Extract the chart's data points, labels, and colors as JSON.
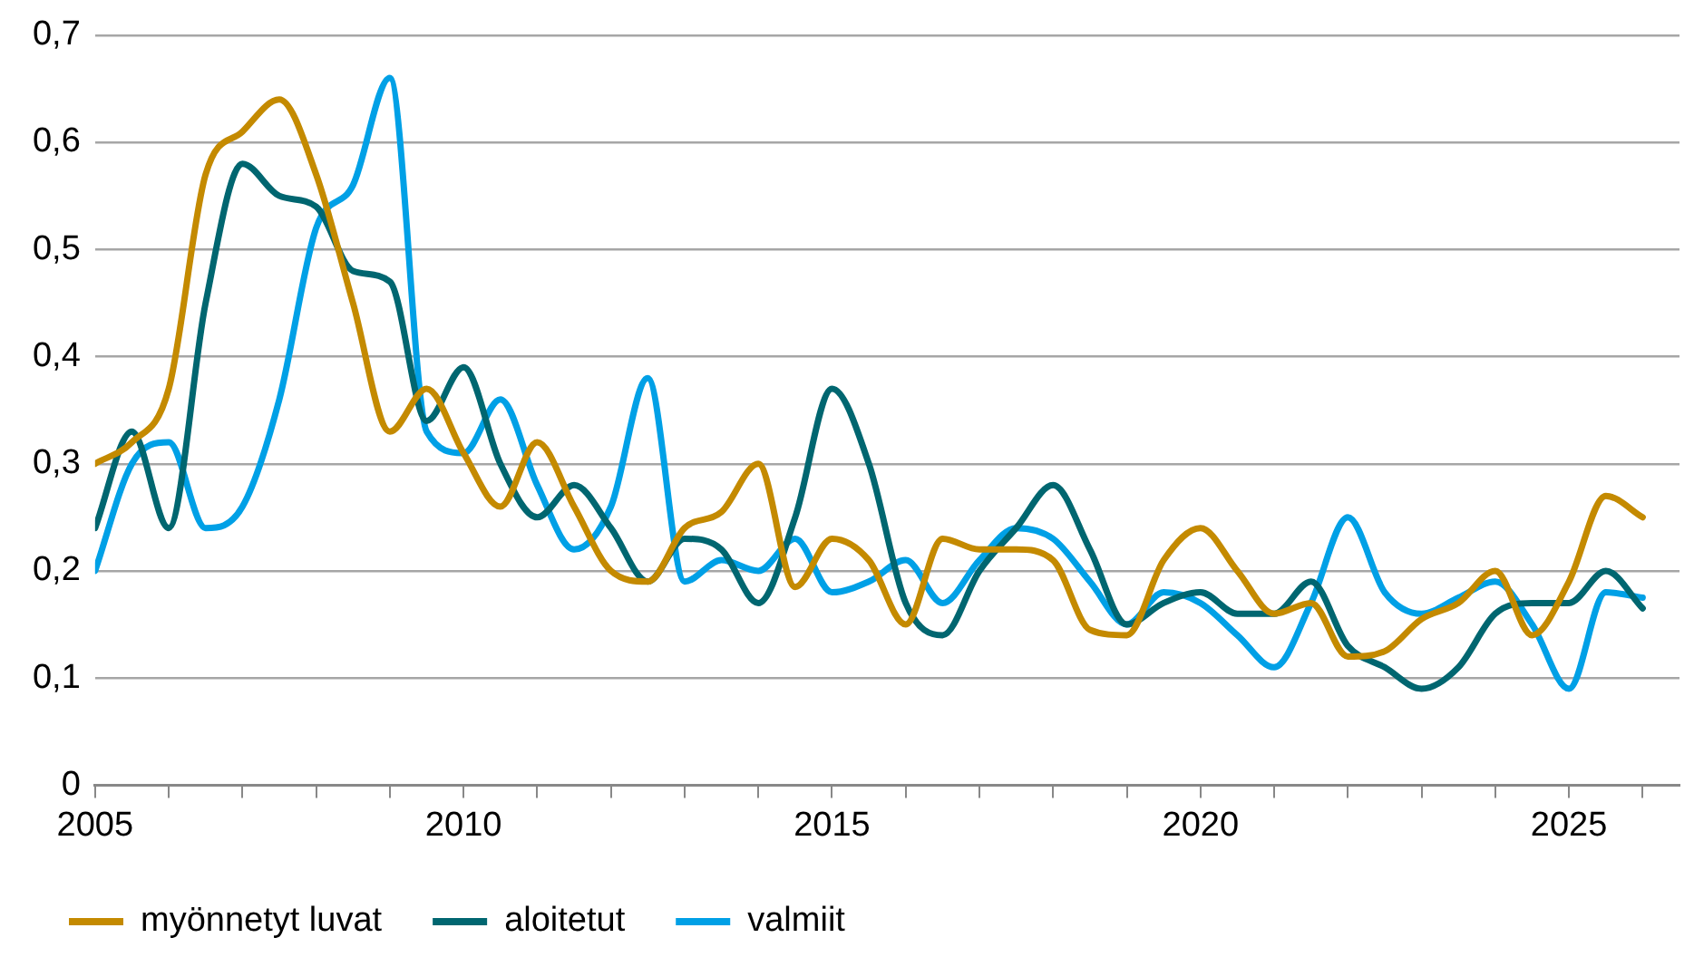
{
  "chart_data": {
    "type": "line",
    "x": [
      2005,
      2005.5,
      2006,
      2006.5,
      2007,
      2007.5,
      2008,
      2008.5,
      2009,
      2009.5,
      2010,
      2010.5,
      2011,
      2011.5,
      2012,
      2012.5,
      2013,
      2013.5,
      2014,
      2014.5,
      2015,
      2015.5,
      2016,
      2016.5,
      2017,
      2017.5,
      2018,
      2018.5,
      2019,
      2019.5,
      2020,
      2020.5,
      2021,
      2021.5,
      2022,
      2022.5,
      2023,
      2023.5,
      2024,
      2024.5,
      2025,
      2025.5,
      2026
    ],
    "series": [
      {
        "name": "myönnetyt luvat",
        "color": "#c48a00",
        "values": [
          0.3,
          0.32,
          0.37,
          0.57,
          0.61,
          0.64,
          0.57,
          0.45,
          0.33,
          0.37,
          0.31,
          0.26,
          0.32,
          0.26,
          0.2,
          0.19,
          0.24,
          0.255,
          0.3,
          0.185,
          0.23,
          0.21,
          0.15,
          0.23,
          0.22,
          0.22,
          0.21,
          0.145,
          0.14,
          0.21,
          0.24,
          0.2,
          0.16,
          0.17,
          0.12,
          0.125,
          0.155,
          0.17,
          0.2,
          0.14,
          0.19,
          0.27,
          0.25
        ]
      },
      {
        "name": "aloitetut",
        "color": "#006670",
        "values": [
          0.24,
          0.33,
          0.24,
          0.45,
          0.58,
          0.55,
          0.54,
          0.48,
          0.47,
          0.34,
          0.39,
          0.3,
          0.25,
          0.28,
          0.24,
          0.19,
          0.23,
          0.22,
          0.17,
          0.25,
          0.37,
          0.3,
          0.17,
          0.14,
          0.2,
          0.24,
          0.28,
          0.22,
          0.15,
          0.17,
          0.18,
          0.16,
          0.16,
          0.19,
          0.13,
          0.11,
          0.09,
          0.11,
          0.16,
          0.17,
          0.17,
          0.2,
          0.165
        ]
      },
      {
        "name": "valmiit",
        "color": "#00a0e6",
        "values": [
          0.2,
          0.3,
          0.32,
          0.24,
          0.26,
          0.36,
          0.52,
          0.56,
          0.66,
          0.33,
          0.31,
          0.36,
          0.28,
          0.22,
          0.26,
          0.38,
          0.19,
          0.21,
          0.2,
          0.23,
          0.18,
          0.19,
          0.21,
          0.17,
          0.21,
          0.24,
          0.23,
          0.19,
          0.15,
          0.18,
          0.17,
          0.14,
          0.11,
          0.17,
          0.25,
          0.18,
          0.16,
          0.175,
          0.19,
          0.15,
          0.09,
          0.18,
          0.175
        ]
      }
    ],
    "xlim": [
      2005,
      2026.5
    ],
    "xticks": [
      2005,
      {
        "value": 2006,
        "label": null
      },
      {
        "value": 2007,
        "label": null
      },
      {
        "value": 2008,
        "label": null
      },
      {
        "value": 2009,
        "label": null
      },
      2010,
      {
        "value": 2011,
        "label": null
      },
      {
        "value": 2012,
        "label": null
      },
      {
        "value": 2013,
        "label": null
      },
      {
        "value": 2014,
        "label": null
      },
      2015,
      {
        "value": 2016,
        "label": null
      },
      {
        "value": 2017,
        "label": null
      },
      {
        "value": 2018,
        "label": null
      },
      {
        "value": 2019,
        "label": null
      },
      2020,
      {
        "value": 2021,
        "label": null
      },
      {
        "value": 2022,
        "label": null
      },
      {
        "value": 2023,
        "label": null
      },
      {
        "value": 2024,
        "label": null
      },
      2025,
      {
        "value": 2026,
        "label": null
      }
    ],
    "ylim": [
      0,
      0.7
    ],
    "yticks": [
      {
        "value": 0,
        "label": "0"
      },
      {
        "value": 0.1,
        "label": "0,1"
      },
      {
        "value": 0.2,
        "label": "0,2"
      },
      {
        "value": 0.3,
        "label": "0,3"
      },
      {
        "value": 0.4,
        "label": "0,4"
      },
      {
        "value": 0.5,
        "label": "0,5"
      },
      {
        "value": 0.6,
        "label": "0,6"
      },
      {
        "value": 0.7,
        "label": "0,7"
      }
    ],
    "grid": "y",
    "legend": "bottom",
    "marker": "none",
    "line_style": "solid"
  }
}
